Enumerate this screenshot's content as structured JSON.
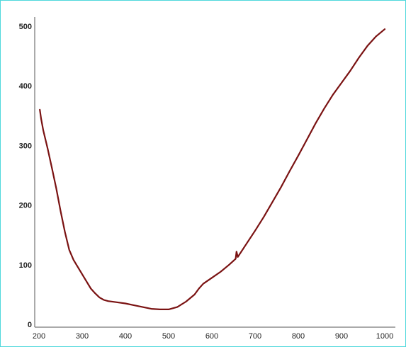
{
  "colors": {
    "frame": "#4fd8dc",
    "axis": "#555555",
    "series": "#7a1212"
  },
  "chart_data": {
    "type": "line",
    "title": "",
    "xlabel": "",
    "ylabel": "",
    "xlim": [
      200,
      1000
    ],
    "ylim": [
      0,
      500
    ],
    "x_ticks": [
      "200",
      "300",
      "400",
      "500",
      "600",
      "700",
      "800",
      "900",
      "1000"
    ],
    "y_ticks": [
      "0",
      "100",
      "200",
      "300",
      "400",
      "500"
    ],
    "grid": false,
    "legend": "none",
    "series": [
      {
        "x": [
          202,
          205,
          210,
          220,
          230,
          240,
          250,
          260,
          270,
          280,
          290,
          300,
          310,
          320,
          330,
          340,
          350,
          360,
          380,
          400,
          420,
          440,
          460,
          480,
          500,
          520,
          540,
          560,
          570,
          580,
          600,
          620,
          640,
          655,
          657,
          660,
          680,
          700,
          720,
          740,
          760,
          780,
          800,
          820,
          840,
          860,
          880,
          900,
          920,
          940,
          960,
          980,
          1000
        ],
        "y": [
          360,
          345,
          325,
          295,
          262,
          228,
          190,
          155,
          125,
          108,
          96,
          84,
          72,
          60,
          52,
          45,
          41,
          39,
          37,
          35,
          32,
          29,
          26,
          25,
          25,
          29,
          38,
          50,
          60,
          68,
          78,
          88,
          100,
          110,
          122,
          113,
          135,
          157,
          180,
          205,
          230,
          257,
          283,
          310,
          337,
          362,
          385,
          405,
          425,
          447,
          467,
          483,
          495
        ]
      }
    ]
  }
}
